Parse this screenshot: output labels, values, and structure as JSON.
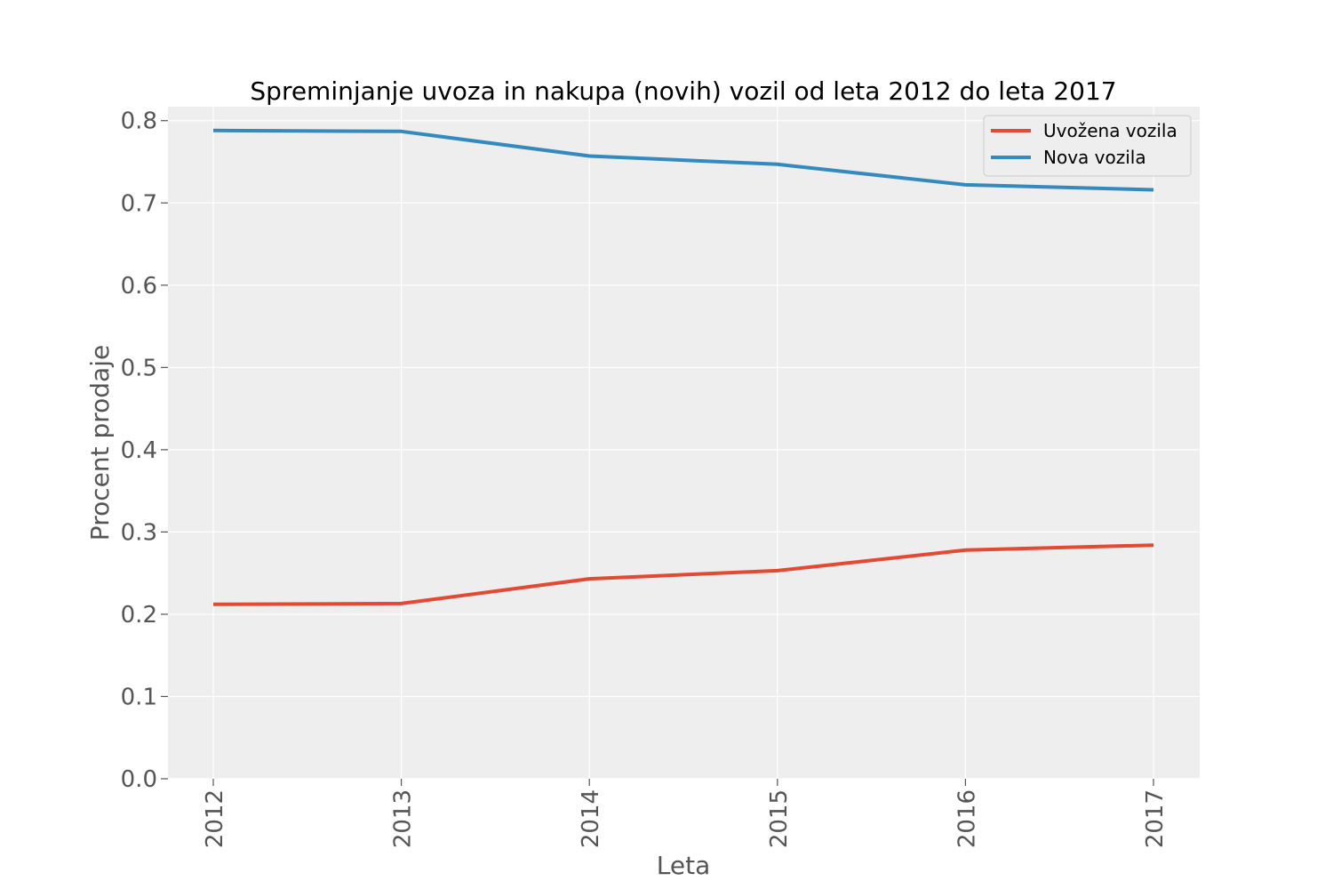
{
  "chart_data": {
    "type": "line",
    "title": "Spreminjanje uvoza in nakupa (novih) vozil od leta 2012 do leta 2017",
    "xlabel": "Leta",
    "ylabel": "Procent prodaje",
    "x": [
      "2012",
      "2013",
      "2014",
      "2015",
      "2016",
      "2017"
    ],
    "y_ticks": [
      "0.0",
      "0.1",
      "0.2",
      "0.3",
      "0.4",
      "0.5",
      "0.6",
      "0.7",
      "0.8"
    ],
    "ylim": [
      0,
      0.817
    ],
    "grid": true,
    "legend_position": "top-right",
    "series": [
      {
        "name": "Uvožena vozila",
        "color": "#E24A33",
        "values": [
          0.212,
          0.213,
          0.243,
          0.253,
          0.278,
          0.284
        ]
      },
      {
        "name": "Nova vozila",
        "color": "#348ABD",
        "values": [
          0.788,
          0.787,
          0.757,
          0.747,
          0.722,
          0.716
        ]
      }
    ]
  }
}
